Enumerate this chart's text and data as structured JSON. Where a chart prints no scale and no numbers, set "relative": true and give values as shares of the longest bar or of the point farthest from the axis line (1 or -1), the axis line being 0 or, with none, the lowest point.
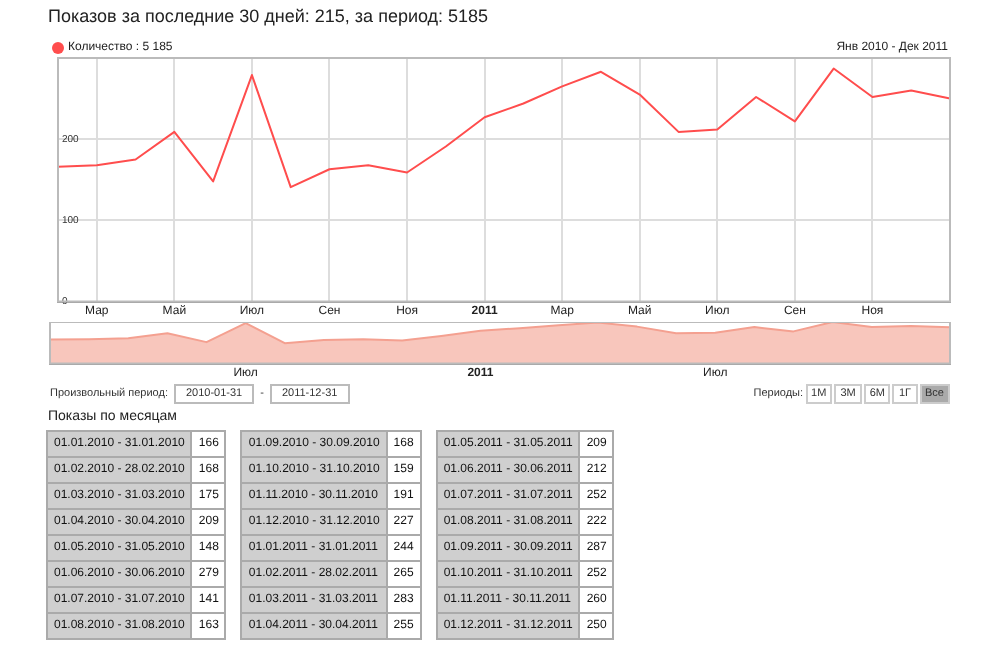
{
  "chart_data": [
    {
      "type": "line",
      "title": "Показов за последние 30 дней: 215, за период: 5185",
      "categories": [
        null,
        "Мар",
        null,
        "Май",
        null,
        "Июл",
        null,
        "Сен",
        null,
        "Ноя",
        null,
        "2011",
        null,
        "Мар",
        null,
        "Май",
        null,
        "Июл",
        null,
        "Сен",
        null,
        "Ноя",
        null,
        null
      ],
      "series": [
        {
          "name": "Количество : 5 185",
          "color": "#ff4d4d",
          "values": [
            166,
            168,
            175,
            209,
            148,
            279,
            141,
            163,
            168,
            159,
            191,
            227,
            244,
            265,
            283,
            255,
            209,
            212,
            252,
            222,
            287,
            252,
            260,
            250
          ]
        }
      ],
      "ylim": [
        0,
        300
      ],
      "yticks": [
        0,
        100,
        200
      ],
      "grid": true,
      "legend": "top left",
      "marker": "none",
      "line_style": "solid",
      "annotations": [
        "Янв 2010 - Дек 2011"
      ]
    },
    {
      "type": "area",
      "relative": true,
      "categories": [
        null,
        null,
        null,
        null,
        null,
        "Июл",
        null,
        null,
        null,
        null,
        null,
        "2011",
        null,
        null,
        null,
        null,
        null,
        "Июл",
        null,
        null,
        null,
        null,
        null,
        null
      ],
      "series": [
        {
          "color": "#f4a090",
          "values": [
            0.578,
            0.585,
            0.61,
            0.728,
            0.516,
            0.972,
            0.491,
            0.568,
            0.585,
            0.554,
            0.666,
            0.791,
            0.85,
            0.923,
            0.986,
            0.889,
            0.728,
            0.739,
            0.878,
            0.774,
            1,
            0.878,
            0.906,
            0.871
          ]
        }
      ],
      "annotations": [
        "Произвольный период:",
        "2010-01-31",
        "-",
        "2011-12-31",
        "Периоды:",
        "1М",
        "3М",
        "6М",
        "1Г",
        "Все"
      ]
    },
    {
      "type": "other",
      "title": "Показы по месяцам",
      "categories": [
        "01.01.2010 - 31.01.2010",
        "01.02.2010 - 28.02.2010",
        "01.03.2010 - 31.03.2010",
        "01.04.2010 - 30.04.2010",
        "01.05.2010 - 31.05.2010",
        "01.06.2010 - 30.06.2010",
        "01.07.2010 - 31.07.2010",
        "01.08.2010 - 31.08.2010",
        "01.09.2010 - 30.09.2010",
        "01.10.2010 - 31.10.2010",
        "01.11.2010 - 30.11.2010",
        "01.12.2010 - 31.12.2010",
        "01.01.2011 - 31.01.2011",
        "01.02.2011 - 28.02.2011",
        "01.03.2011 - 31.03.2011",
        "01.04.2011 - 30.04.2011",
        "01.05.2011 - 31.05.2011",
        "01.06.2011 - 30.06.2011",
        "01.07.2011 - 31.07.2011",
        "01.08.2011 - 31.08.2011",
        "01.09.2011 - 30.09.2011",
        "01.10.2011 - 31.10.2011",
        "01.11.2011 - 30.11.2011",
        "01.12.2011 - 31.12.2011"
      ],
      "values": [
        166,
        168,
        175,
        209,
        148,
        279,
        141,
        163,
        168,
        159,
        191,
        227,
        244,
        265,
        283,
        255,
        209,
        212,
        252,
        222,
        287,
        252,
        260,
        250
      ],
      "data_labels": true
    }
  ]
}
